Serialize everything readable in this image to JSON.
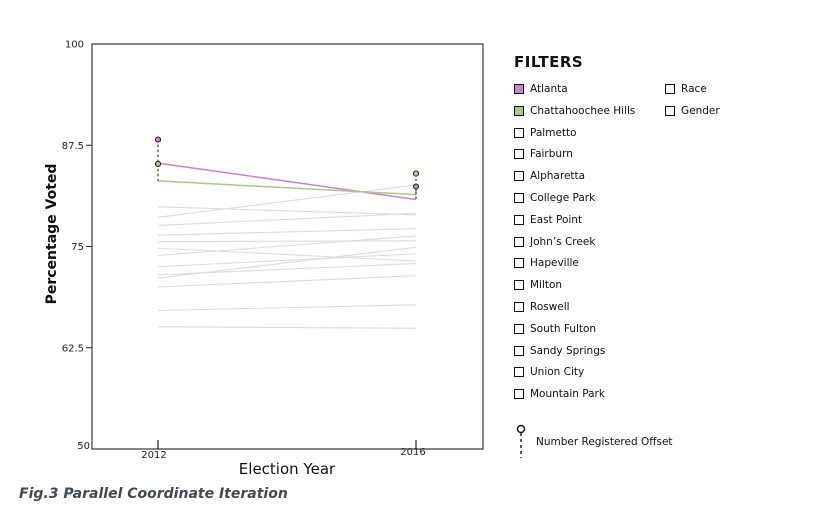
{
  "chart_data": {
    "type": "line",
    "subtype": "parallel-coordinates",
    "xlabel": "Election Year",
    "ylabel": "Percentage Voted",
    "categories": [
      "2012",
      "2016"
    ],
    "ylim": [
      50,
      100
    ],
    "yticks": [
      {
        "value": 100,
        "label": "100"
      },
      {
        "value": 87.5,
        "label": "87.5"
      },
      {
        "value": 75,
        "label": "75"
      },
      {
        "value": 62.5,
        "label": "62.5"
      },
      {
        "value": 50,
        "label": "50"
      }
    ],
    "series": [
      {
        "name": "Atlanta",
        "values": [
          85.3,
          80.8
        ],
        "color": "#c97fd2",
        "highlighted": true,
        "registered_offset": [
          88.2,
          82.4
        ]
      },
      {
        "name": "Chattahoochee Hills",
        "values": [
          83.1,
          81.4
        ],
        "color": "#a8c98a",
        "highlighted": true,
        "registered_offset": [
          85.2,
          84.0
        ]
      },
      {
        "name": "Palmetto",
        "values": [
          79.9,
          78.9
        ],
        "color": "#dcdcdc",
        "highlighted": false
      },
      {
        "name": "Fairburn",
        "values": [
          78.6,
          82.6
        ],
        "color": "#dcdcdc",
        "highlighted": false
      },
      {
        "name": "Alpharetta",
        "values": [
          77.6,
          79.1
        ],
        "color": "#dcdcdc",
        "highlighted": false
      },
      {
        "name": "College Park",
        "values": [
          76.4,
          77.2
        ],
        "color": "#dcdcdc",
        "highlighted": false
      },
      {
        "name": "East Point",
        "values": [
          75.6,
          75.7
        ],
        "color": "#dcdcdc",
        "highlighted": false
      },
      {
        "name": "John's Creek",
        "values": [
          74.8,
          73.2
        ],
        "color": "#dcdcdc",
        "highlighted": false
      },
      {
        "name": "Hapeville",
        "values": [
          73.9,
          76.3
        ],
        "color": "#dcdcdc",
        "highlighted": false
      },
      {
        "name": "Milton",
        "values": [
          72.5,
          74.1
        ],
        "color": "#dcdcdc",
        "highlighted": false
      },
      {
        "name": "Roswell",
        "values": [
          71.5,
          72.9
        ],
        "color": "#dcdcdc",
        "highlighted": false
      },
      {
        "name": "South Fulton",
        "values": [
          71.1,
          74.9
        ],
        "color": "#dcdcdc",
        "highlighted": false
      },
      {
        "name": "Sandy Springs",
        "values": [
          70.0,
          71.4
        ],
        "color": "#dcdcdc",
        "highlighted": false
      },
      {
        "name": "Union City",
        "values": [
          67.1,
          67.8
        ],
        "color": "#dcdcdc",
        "highlighted": false
      },
      {
        "name": "Mountain Park",
        "values": [
          65.1,
          64.9
        ],
        "color": "#dcdcdc",
        "highlighted": false
      }
    ]
  },
  "filters": {
    "title": "FILTERS",
    "places": [
      {
        "label": "Atlanta",
        "checked": true,
        "color": "#c97fd2"
      },
      {
        "label": "Chattahoochee Hills",
        "checked": true,
        "color": "#a8c98a"
      },
      {
        "label": "Palmetto",
        "checked": false
      },
      {
        "label": "Fairburn",
        "checked": false
      },
      {
        "label": "Alpharetta",
        "checked": false
      },
      {
        "label": "College Park",
        "checked": false
      },
      {
        "label": "East Point",
        "checked": false
      },
      {
        "label": "John’s Creek",
        "checked": false
      },
      {
        "label": "Hapeville",
        "checked": false
      },
      {
        "label": "Milton",
        "checked": false
      },
      {
        "label": "Roswell",
        "checked": false
      },
      {
        "label": "South Fulton",
        "checked": false
      },
      {
        "label": "Sandy Springs",
        "checked": false
      },
      {
        "label": "Union City",
        "checked": false
      },
      {
        "label": "Mountain Park",
        "checked": false
      }
    ],
    "demographics": [
      {
        "label": "Race",
        "checked": false
      },
      {
        "label": "Gender",
        "checked": false
      }
    ],
    "offset_legend": "Number Registered Offset"
  },
  "caption": "Fig.3 Parallel Coordinate Iteration"
}
